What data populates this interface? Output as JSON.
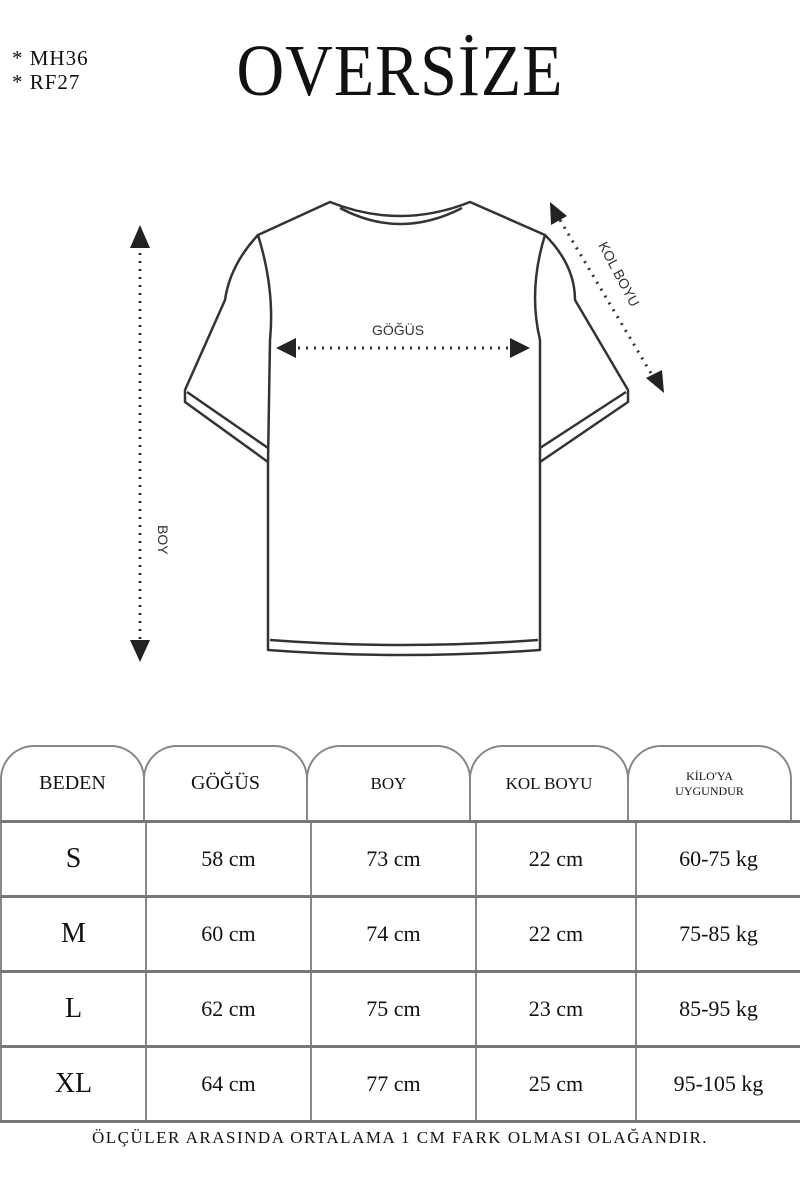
{
  "codes": [
    "* MH36",
    "* RF27"
  ],
  "title": "OVERSİZE",
  "diagram": {
    "chest_label": "GÖĞÜS",
    "sleeve_label": "KOL BOYU",
    "length_label": "BOY"
  },
  "table": {
    "headers": [
      "BEDEN",
      "GÖĞÜS",
      "BOY",
      "KOL BOYU",
      "KİLO'YA UYGUNDUR"
    ],
    "header_lines": {
      "weight_1": "KİLO'YA",
      "weight_2": "UYGUNDUR"
    },
    "rows": [
      [
        "S",
        "58 cm",
        "73 cm",
        "22  cm",
        "60-75 kg"
      ],
      [
        "M",
        "60 cm",
        "74 cm",
        "22 cm",
        "75-85 kg"
      ],
      [
        "L",
        "62 cm",
        "75 cm",
        "23 cm",
        "85-95 kg"
      ],
      [
        "XL",
        "64 cm",
        "77 cm",
        "25 cm",
        "95-105 kg"
      ]
    ]
  },
  "note": "ÖLÇÜLER ARASINDA ORTALAMA 1 CM FARK OLMASI OLAĞANDIR."
}
